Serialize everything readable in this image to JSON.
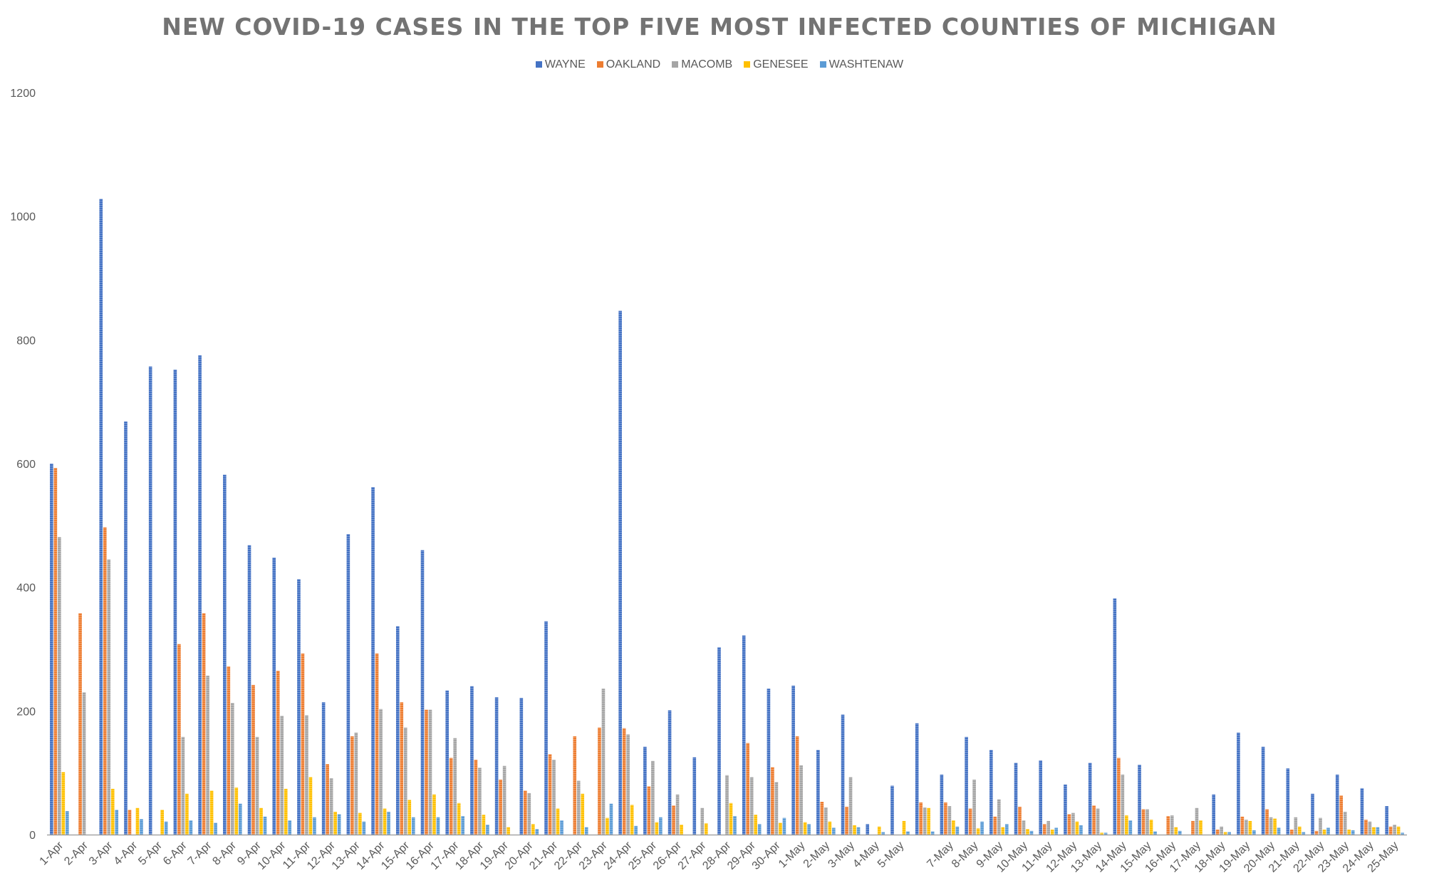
{
  "chart_data": {
    "type": "bar",
    "title": "NEW COVID-19 CASES IN THE TOP FIVE MOST INFECTED COUNTIES OF MICHIGAN",
    "xlabel": "",
    "ylabel": "",
    "ylim": [
      0,
      1200
    ],
    "yticks": [
      "0",
      "200",
      "400",
      "600",
      "800",
      "1000",
      "1200"
    ],
    "legend_position": "top",
    "grid": false,
    "categories": [
      "1-Apr",
      "2-Apr",
      "3-Apr",
      "4-Apr",
      "5-Apr",
      "6-Apr",
      "7-Apr",
      "8-Apr",
      "9-Apr",
      "10-Apr",
      "11-Apr",
      "12-Apr",
      "13-Apr",
      "14-Apr",
      "15-Apr",
      "16-Apr",
      "17-Apr",
      "18-Apr",
      "19-Apr",
      "20-Apr",
      "21-Apr",
      "22-Apr",
      "23-Apr",
      "24-Apr",
      "25-Apr",
      "26-Apr",
      "27-Apr",
      "28-Apr",
      "29-Apr",
      "30-Apr",
      "1-May",
      "2-May",
      "3-May",
      "4-May",
      "5-May",
      "",
      "7-May",
      "8-May",
      "9-May",
      "10-May",
      "11-May",
      "12-May",
      "13-May",
      "14-May",
      "15-May",
      "16-May",
      "17-May",
      "18-May",
      "19-May",
      "20-May",
      "21-May",
      "22-May",
      "23-May",
      "24-May",
      "25-May"
    ],
    "series": [
      {
        "name": "WAYNE",
        "color": "#4472C4",
        "values": [
          600,
          0,
          1028,
          668,
          757,
          752,
          775,
          582,
          468,
          448,
          413,
          214,
          486,
          562,
          337,
          460,
          233,
          240,
          222,
          221,
          345,
          0,
          0,
          847,
          142,
          201,
          125,
          303,
          322,
          236,
          241,
          137,
          194,
          17,
          79,
          180,
          97,
          158,
          137,
          116,
          120,
          81,
          116,
          382,
          113,
          0,
          0,
          65,
          165,
          142,
          107,
          66,
          97,
          75,
          46
        ]
      },
      {
        "name": "OAKLAND",
        "color": "#ED7D31",
        "values": [
          593,
          358,
          497,
          40,
          0,
          308,
          358,
          272,
          242,
          265,
          293,
          114,
          159,
          293,
          214,
          202,
          124,
          121,
          89,
          71,
          130,
          159,
          173,
          172,
          78,
          47,
          0,
          0,
          148,
          109,
          159,
          53,
          45,
          0,
          0,
          52,
          52,
          42,
          29,
          45,
          17,
          33,
          47,
          124,
          41,
          30,
          22,
          8,
          29,
          41,
          8,
          6,
          63,
          24,
          13
        ]
      },
      {
        "name": "MACOMB",
        "color": "#A5A5A5",
        "values": [
          481,
          230,
          445,
          0,
          0,
          158,
          257,
          213,
          158,
          192,
          193,
          91,
          165,
          203,
          173,
          202,
          156,
          108,
          111,
          67,
          121,
          87,
          236,
          162,
          119,
          65,
          43,
          96,
          93,
          85,
          112,
          44,
          93,
          0,
          0,
          44,
          46,
          89,
          57,
          23,
          22,
          35,
          42,
          97,
          41,
          31,
          43,
          13,
          24,
          28,
          28,
          27,
          37,
          21,
          16
        ]
      },
      {
        "name": "GENESEE",
        "color": "#FFC000",
        "values": [
          101,
          0,
          74,
          43,
          40,
          66,
          71,
          76,
          43,
          74,
          93,
          37,
          35,
          42,
          56,
          65,
          51,
          32,
          12,
          17,
          42,
          66,
          27,
          48,
          20,
          16,
          18,
          51,
          32,
          19,
          20,
          21,
          15,
          13,
          22,
          43,
          23,
          10,
          12,
          9,
          8,
          21,
          3,
          31,
          24,
          12,
          23,
          4,
          22,
          26,
          13,
          8,
          8,
          12,
          13
        ]
      },
      {
        "name": "WASHTENAW",
        "color": "#5B9BD5",
        "values": [
          38,
          0,
          40,
          25,
          21,
          23,
          19,
          50,
          29,
          23,
          28,
          33,
          21,
          37,
          28,
          28,
          30,
          16,
          0,
          9,
          23,
          12,
          50,
          14,
          28,
          0,
          0,
          30,
          17,
          27,
          17,
          11,
          12,
          4,
          5,
          5,
          13,
          21,
          17,
          6,
          11,
          15,
          3,
          23,
          5,
          6,
          0,
          4,
          7,
          11,
          4,
          11,
          7,
          12,
          3
        ]
      }
    ]
  }
}
